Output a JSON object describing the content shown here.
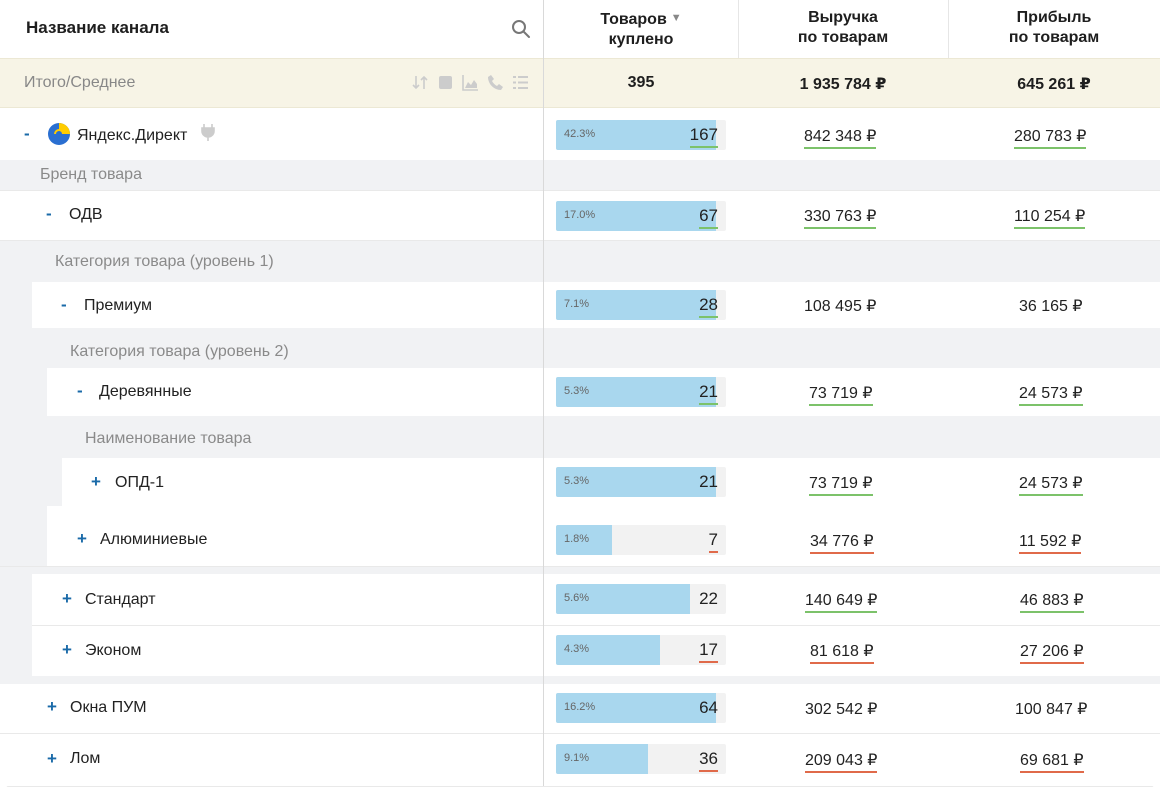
{
  "header": {
    "channel_title": "Название канала",
    "col_items": [
      "Товаров",
      "куплено"
    ],
    "col_revenue": [
      "Выручка",
      "по товарам"
    ],
    "col_profit": [
      "Прибыль",
      "по товарам"
    ],
    "sort_glyph": "▼"
  },
  "totals": {
    "label": "Итого/Среднее",
    "items": "395",
    "revenue": "1 935 784 ₽",
    "profit": "645 261 ₽",
    "icons": [
      "sort-order-icon",
      "square-icon",
      "area-chart-icon",
      "phone-icon",
      "list-icon"
    ]
  },
  "groups": {
    "brand": "Бренд товара",
    "cat1": "Категория товара (уровень 1)",
    "cat2": "Категория товара (уровень 2)",
    "product": "Наименование товара"
  },
  "rows": [
    {
      "toggle": "-",
      "name": "Яндекс.Директ",
      "pct": "42.3%",
      "fill": 0.94,
      "count": "167",
      "count_ul": "green",
      "revenue": "842 348 ₽",
      "rev_ul": "green",
      "profit": "280 783 ₽",
      "prof_ul": "green"
    },
    {
      "toggle": "-",
      "name": "ОДВ",
      "pct": "17.0%",
      "fill": 0.94,
      "count": "67",
      "count_ul": "green",
      "revenue": "330 763 ₽",
      "rev_ul": "green",
      "profit": "110 254 ₽",
      "prof_ul": "green"
    },
    {
      "toggle": "-",
      "name": "Премиум",
      "pct": "7.1%",
      "fill": 0.94,
      "count": "28",
      "count_ul": "green",
      "revenue": "108 495 ₽",
      "rev_ul": "none",
      "profit": "36 165 ₽",
      "prof_ul": "none"
    },
    {
      "toggle": "-",
      "name": "Деревянные",
      "pct": "5.3%",
      "fill": 0.94,
      "count": "21",
      "count_ul": "green",
      "revenue": "73 719 ₽",
      "rev_ul": "green",
      "profit": "24 573 ₽",
      "prof_ul": "green"
    },
    {
      "toggle": "+",
      "name": "ОПД-1",
      "pct": "5.3%",
      "fill": 0.94,
      "count": "21",
      "count_ul": "none",
      "revenue": "73 719 ₽",
      "rev_ul": "green",
      "profit": "24 573 ₽",
      "prof_ul": "green"
    },
    {
      "toggle": "+",
      "name": "Алюминиевые",
      "pct": "1.8%",
      "fill": 0.33,
      "count": "7",
      "count_ul": "red",
      "revenue": "34 776 ₽",
      "rev_ul": "red",
      "profit": "11 592 ₽",
      "prof_ul": "red"
    },
    {
      "toggle": "+",
      "name": "Стандарт",
      "pct": "5.6%",
      "fill": 0.79,
      "count": "22",
      "count_ul": "none",
      "revenue": "140 649 ₽",
      "rev_ul": "green",
      "profit": "46 883 ₽",
      "prof_ul": "green"
    },
    {
      "toggle": "+",
      "name": "Эконом",
      "pct": "4.3%",
      "fill": 0.61,
      "count": "17",
      "count_ul": "red",
      "revenue": "81 618 ₽",
      "rev_ul": "red",
      "profit": "27 206 ₽",
      "prof_ul": "red"
    },
    {
      "toggle": "+",
      "name": "Окна ПУМ",
      "pct": "16.2%",
      "fill": 0.94,
      "count": "64",
      "count_ul": "none",
      "revenue": "302 542 ₽",
      "rev_ul": "none",
      "profit": "100 847 ₽",
      "prof_ul": "none"
    },
    {
      "toggle": "+",
      "name": "Лом",
      "pct": "9.1%",
      "fill": 0.54,
      "count": "36",
      "count_ul": "red",
      "revenue": "209 043 ₽",
      "rev_ul": "red",
      "profit": "69 681 ₽",
      "prof_ul": "red"
    }
  ],
  "colors": {
    "accent": "#1a6aa8",
    "bar_fill": "#a9d7ee",
    "underline_good": "#7cc26a",
    "underline_bad": "#e06a4a",
    "totals_bg": "#f7f4e6"
  }
}
